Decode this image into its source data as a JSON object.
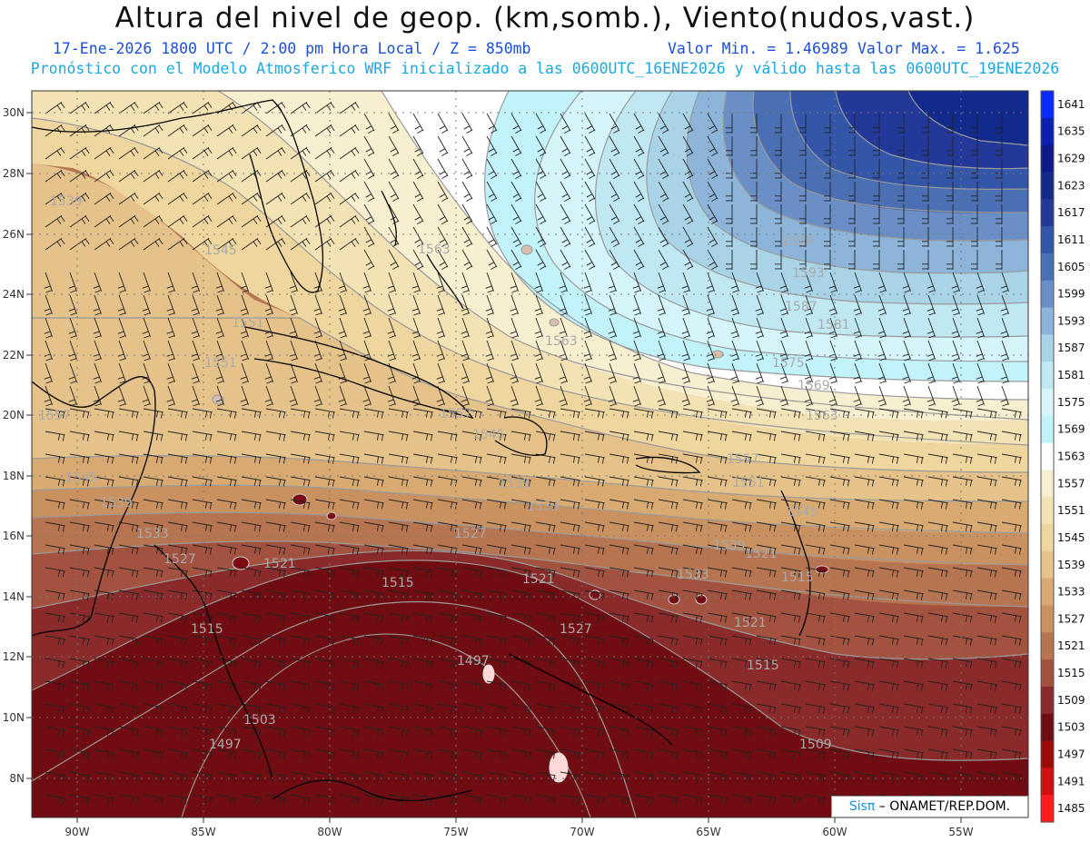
{
  "header": {
    "title": "Altura del nivel de geop. (km,somb.), Viento(nudos,vast.)",
    "date_time": "17-Ene-2026  1800 UTC / 2:00 pm Hora Local / Z = 850mb",
    "value_min": "Valor Min. = 1.46989",
    "value_max": "Valor Max. = 1.625",
    "forecast_note": "Pronóstico con el Modelo Atmosferico WRF inicializado a las 0600UTC_16ENE2026 y válido hasta las  0600UTC_19ENE2026"
  },
  "axes": {
    "lon_labels": [
      "90W",
      "85W",
      "80W",
      "75W",
      "70W",
      "65W",
      "60W",
      "55W"
    ],
    "lat_labels": [
      "30N",
      "28N",
      "26N",
      "24N",
      "22N",
      "20N",
      "18N",
      "16N",
      "14N",
      "12N",
      "10N",
      "8N"
    ]
  },
  "colorbar": {
    "levels": [
      "1641",
      "1635",
      "1629",
      "1623",
      "1617",
      "1611",
      "1605",
      "1599",
      "1593",
      "1587",
      "1581",
      "1575",
      "1569",
      "1563",
      "1557",
      "1551",
      "1545",
      "1539",
      "1533",
      "1527",
      "1521",
      "1515",
      "1509",
      "1503",
      "1497",
      "1491",
      "1485"
    ],
    "colors": [
      "#0a2bff",
      "#0b1fb0",
      "#0d1a8a",
      "#122a8c",
      "#23399a",
      "#3456a8",
      "#4a6fb3",
      "#6a8fc6",
      "#8db4d9",
      "#a9d4e8",
      "#bfe8f3",
      "#d5f5fa",
      "#c2f3fb",
      "#ffffff",
      "#f7efd0",
      "#f3e3b4",
      "#efd59e",
      "#e5c28a",
      "#d8aa72",
      "#c99060",
      "#b77450",
      "#a35240",
      "#8a2a2a",
      "#6f0d12",
      "#9c0a0a",
      "#d01010",
      "#ff1c1c"
    ]
  },
  "contour_labels": [
    "1539",
    "1545",
    "1563",
    "1551",
    "1563",
    "1557",
    "1545",
    "1539",
    "1533",
    "1527",
    "1521",
    "1515",
    "1521",
    "1515",
    "1503",
    "1497",
    "1497",
    "1509",
    "1515",
    "1521",
    "1527",
    "1533",
    "1539",
    "1545",
    "1551",
    "1557",
    "1563",
    "1569",
    "1575",
    "1581",
    "1587",
    "1593",
    "1599",
    "1557",
    "1551",
    "1545",
    "1539",
    "1533",
    "1527",
    "1521",
    "1515"
  ],
  "credit": {
    "logo": "Sisπ",
    "text": " – ONAMET/REP.DOM."
  }
}
